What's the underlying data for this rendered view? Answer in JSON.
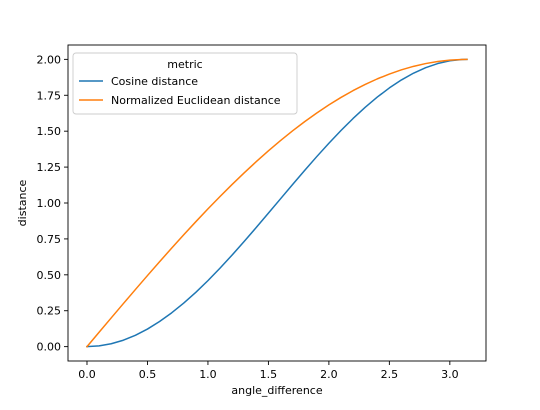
{
  "chart_data": {
    "type": "line",
    "xlabel": "angle_difference",
    "ylabel": "distance",
    "xlim": [
      -0.157,
      3.299
    ],
    "ylim": [
      -0.1,
      2.1
    ],
    "xticks": [
      0.0,
      0.5,
      1.0,
      1.5,
      2.0,
      2.5,
      3.0
    ],
    "xtick_labels": [
      "0.0",
      "0.5",
      "1.0",
      "1.5",
      "2.0",
      "2.5",
      "3.0"
    ],
    "yticks": [
      0.0,
      0.25,
      0.5,
      0.75,
      1.0,
      1.25,
      1.5,
      1.75,
      2.0
    ],
    "ytick_labels": [
      "0.00",
      "0.25",
      "0.50",
      "0.75",
      "1.00",
      "1.25",
      "1.50",
      "1.75",
      "2.00"
    ],
    "grid": false,
    "legend": {
      "title": "metric",
      "placement": "upper-left"
    },
    "series": [
      {
        "name": "Cosine distance",
        "color": "#1f77b4",
        "x": [
          0.0,
          0.1,
          0.2,
          0.3,
          0.4,
          0.5,
          0.6,
          0.7,
          0.8,
          0.9,
          1.0,
          1.1,
          1.2,
          1.3,
          1.4,
          1.5,
          1.6,
          1.7,
          1.8,
          1.9,
          2.0,
          2.1,
          2.2,
          2.3,
          2.4,
          2.5,
          2.6,
          2.7,
          2.8,
          2.9,
          3.0,
          3.1,
          3.1416
        ],
        "y": [
          0.0,
          0.005,
          0.0199,
          0.0447,
          0.0789,
          0.1224,
          0.1747,
          0.2352,
          0.3033,
          0.3784,
          0.4597,
          0.5464,
          0.6376,
          0.7325,
          0.83,
          0.9293,
          1.0292,
          1.1288,
          1.2272,
          1.3233,
          1.4161,
          1.5048,
          1.5885,
          1.6663,
          1.7374,
          1.8011,
          1.8569,
          1.9041,
          1.9422,
          1.971,
          1.99,
          1.9991,
          2.0
        ]
      },
      {
        "name": "Normalized Euclidean distance",
        "color": "#ff7f0e",
        "x": [
          0.0,
          0.1,
          0.2,
          0.3,
          0.4,
          0.5,
          0.6,
          0.7,
          0.8,
          0.9,
          1.0,
          1.1,
          1.2,
          1.3,
          1.4,
          1.5,
          1.6,
          1.7,
          1.8,
          1.9,
          2.0,
          2.1,
          2.2,
          2.3,
          2.4,
          2.5,
          2.6,
          2.7,
          2.8,
          2.9,
          3.0,
          3.1,
          3.1416
        ],
        "y": [
          0.0,
          0.0999,
          0.1997,
          0.2989,
          0.3973,
          0.4948,
          0.591,
          0.6857,
          0.7788,
          0.8699,
          0.9589,
          1.0454,
          1.1293,
          1.2104,
          1.2884,
          1.3633,
          1.4347,
          1.5025,
          1.5666,
          1.6268,
          1.6829,
          1.7349,
          1.7825,
          1.8257,
          1.8641,
          1.8979,
          1.9271,
          1.9514,
          1.9707,
          1.9851,
          1.995,
          1.9995,
          2.0
        ]
      }
    ]
  }
}
